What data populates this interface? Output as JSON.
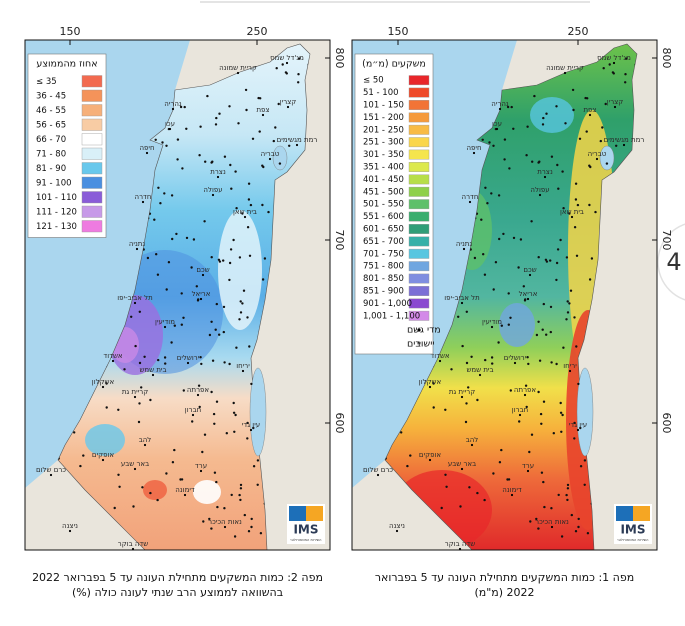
{
  "maps": [
    {
      "axis_top": [
        150,
        250
      ],
      "axis_right": [
        800,
        700,
        600
      ],
      "legend": {
        "title": "אחוז מהממוצע",
        "entries": [
          {
            "label": "≤ 35",
            "color": "#f26a4f"
          },
          {
            "label": "36 - 45",
            "color": "#f4935a"
          },
          {
            "label": "46 - 55",
            "color": "#f6b07a"
          },
          {
            "label": "56 - 65",
            "color": "#f8cca4"
          },
          {
            "label": "66 - 70",
            "color": "#ffffff"
          },
          {
            "label": "71 - 80",
            "color": "#d9f0f8"
          },
          {
            "label": "81 - 90",
            "color": "#68c8ec"
          },
          {
            "label": "91 - 100",
            "color": "#4a8fe0"
          },
          {
            "label": "101 - 110",
            "color": "#8a5cd8"
          },
          {
            "label": "111 - 120",
            "color": "#c79ae8"
          },
          {
            "label": "121 - 130",
            "color": "#ee7be0"
          }
        ]
      },
      "caption": [
        "מפה 2: כמות המשקעים מתחילת העונה עד 5 בפברואר 2022",
        "בהשוואה לממוצע הרב שנתי לעונה כולה (%)"
      ]
    },
    {
      "axis_top": [
        150,
        250
      ],
      "axis_right": [
        800,
        700,
        600
      ],
      "legend": {
        "title": "משקעים (מ״מ)",
        "entries": [
          {
            "label": "≤ 50",
            "color": "#e8262a"
          },
          {
            "label": "51 - 100",
            "color": "#ee4a2a"
          },
          {
            "label": "101 - 150",
            "color": "#f27436"
          },
          {
            "label": "151 - 200",
            "color": "#f59a3c"
          },
          {
            "label": "201 - 250",
            "color": "#f8bb45"
          },
          {
            "label": "251 - 300",
            "color": "#fad64b"
          },
          {
            "label": "301 - 350",
            "color": "#f5e54d"
          },
          {
            "label": "351 - 400",
            "color": "#dce94c"
          },
          {
            "label": "401 - 450",
            "color": "#b7de4a"
          },
          {
            "label": "451 - 500",
            "color": "#8ed04a"
          },
          {
            "label": "501 - 550",
            "color": "#5ec06a"
          },
          {
            "label": "551 - 600",
            "color": "#3aae6e"
          },
          {
            "label": "601 - 650",
            "color": "#2f9e78"
          },
          {
            "label": "651 - 700",
            "color": "#36b0a8"
          },
          {
            "label": "701 - 750",
            "color": "#58c6e0"
          },
          {
            "label": "751 - 800",
            "color": "#70a6e0"
          },
          {
            "label": "801 - 850",
            "color": "#7f8ee0"
          },
          {
            "label": "851 - 900",
            "color": "#7c6fd6"
          },
          {
            "label": "901 - 1,000",
            "color": "#8a4ad0"
          },
          {
            "label": "1,001 - 1,100",
            "color": "#d38ae8"
          }
        ],
        "symbols": [
          "מדי גשם",
          "יישובים"
        ]
      },
      "caption": [
        "מפה 1: כמות המשקעים מתחילת העונה עד 5 בפברואר",
        "2022 (מ\"מ)"
      ]
    }
  ],
  "places": [
    "קריית שמונה",
    "מג'דל שמס",
    "צפת",
    "נהריה",
    "עכו",
    "קצרין",
    "חיפה",
    "טבריה",
    "רמת מגשימים",
    "נצרת",
    "עפולה",
    "בית שאן",
    "חדרה",
    "נתניה",
    "שכם",
    "אריאל",
    "תל אביב-יפו",
    "מודיעין",
    "ירושלים",
    "יריחו",
    "אשדוד",
    "בית שמש",
    "אשקלון",
    "קריית גת",
    "אפרתה",
    "חברון",
    "עין גדי",
    "להב",
    "אופקים",
    "באר שבע",
    "כרם שלום",
    "ערד",
    "דימונה",
    "נאות הכיכר",
    "ניצנה",
    "שדה בוקר"
  ],
  "logo": "IMS",
  "logo_sub": "השירות המטאורולוגי",
  "page_badge": "4"
}
